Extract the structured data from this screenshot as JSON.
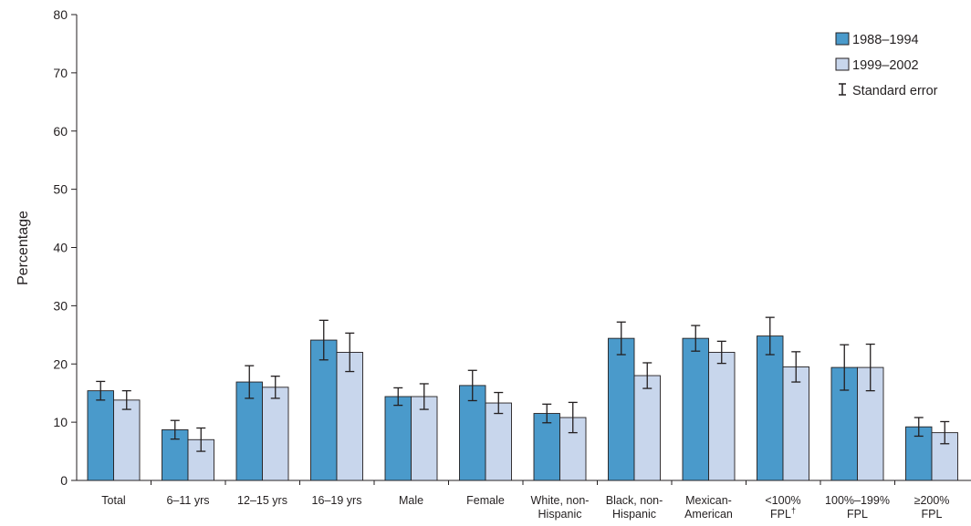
{
  "chart_data": {
    "type": "bar",
    "title": "",
    "xlabel": "",
    "ylabel": "Percentage",
    "ylim": [
      0,
      80
    ],
    "yticks": [
      "0",
      "10",
      "20",
      "30",
      "40",
      "50",
      "60",
      "70",
      "80"
    ],
    "grid": false,
    "legend_position": "top-right",
    "categories": [
      {
        "lines": [
          "Total"
        ]
      },
      {
        "lines": [
          "6–11 yrs"
        ]
      },
      {
        "lines": [
          "12–15 yrs"
        ]
      },
      {
        "lines": [
          "16–19 yrs"
        ]
      },
      {
        "lines": [
          "Male"
        ]
      },
      {
        "lines": [
          "Female"
        ]
      },
      {
        "lines": [
          "White, non-",
          "Hispanic"
        ]
      },
      {
        "lines": [
          "Black, non-",
          "Hispanic"
        ]
      },
      {
        "lines": [
          "Mexican-",
          "American"
        ]
      },
      {
        "lines": [
          "<100%",
          "FPL"
        ],
        "superscript": "†"
      },
      {
        "lines": [
          "100%–199%",
          "FPL"
        ]
      },
      {
        "lines": [
          "≥200%",
          "FPL"
        ]
      }
    ],
    "series": [
      {
        "name": "1988–1994",
        "color": "#4a9acb",
        "values": [
          15.4,
          8.7,
          16.9,
          24.1,
          14.4,
          16.3,
          11.5,
          24.4,
          24.4,
          24.8,
          19.4,
          9.2
        ],
        "errors": [
          1.6,
          1.6,
          2.8,
          3.4,
          1.5,
          2.6,
          1.6,
          2.8,
          2.2,
          3.2,
          3.9,
          1.6
        ]
      },
      {
        "name": "1999–2002",
        "color": "#c8d6ec",
        "values": [
          13.8,
          7.0,
          16.0,
          22.0,
          14.4,
          13.3,
          10.8,
          18.0,
          22.0,
          19.5,
          19.4,
          8.2
        ],
        "errors": [
          1.6,
          2.0,
          1.9,
          3.3,
          2.2,
          1.8,
          2.6,
          2.2,
          1.9,
          2.6,
          4.0,
          1.9
        ]
      }
    ],
    "legend": {
      "series_labels": [
        "1988–1994",
        "1999–2002"
      ],
      "error_label": "Standard error"
    }
  }
}
